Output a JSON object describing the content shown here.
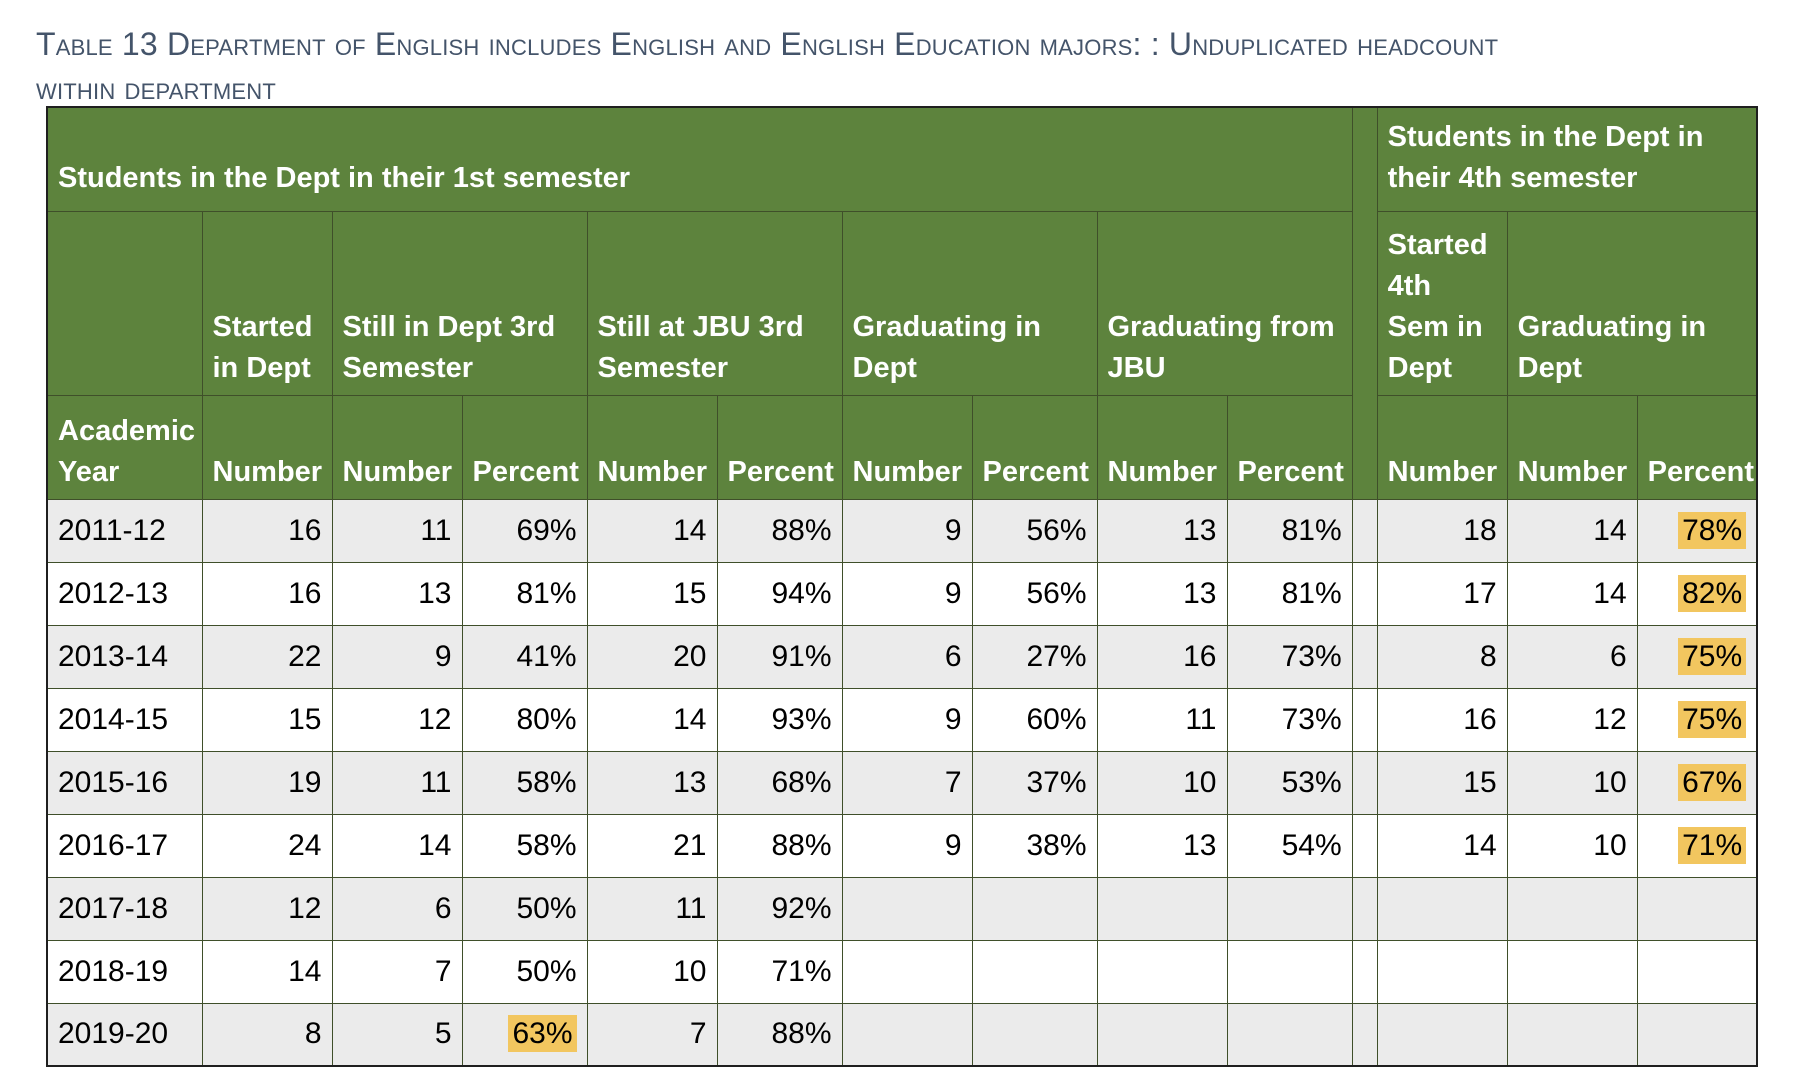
{
  "caption": {
    "line1": "Table 13 Department of English includes English and English Education majors: : Unduplicated headcount",
    "line2": "within department"
  },
  "header": {
    "group_first": "Students in the Dept in their 1st semester",
    "group_fourth": "Students in the Dept in their 4th semester",
    "started_in_dept": "Started in Dept",
    "still_in_dept_3rd": "Still in Dept 3rd Semester",
    "still_at_jbu_3rd": "Still at JBU 3rd Semester",
    "graduating_in_dept": "Graduating in Dept",
    "graduating_from_jbu": "Graduating from JBU",
    "started_4th_sem": "Started 4th Sem in Dept",
    "graduating_in_dept_4th": "Graduating in Dept",
    "academic_year": "Academic Year",
    "number": "Number",
    "percent": "Percent"
  },
  "highlight_color": "#f2c65f",
  "header_color": "#5d833d",
  "rows": [
    {
      "year": "2011-12",
      "started": "16",
      "dept3_n": "11",
      "dept3_p": "69%",
      "jbu3_n": "14",
      "jbu3_p": "88%",
      "grad_dept_n": "9",
      "grad_dept_p": "56%",
      "grad_jbu_n": "13",
      "grad_jbu_p": "81%",
      "s4_started": "18",
      "s4_grad_n": "14",
      "s4_grad_p": "78%"
    },
    {
      "year": "2012-13",
      "started": "16",
      "dept3_n": "13",
      "dept3_p": "81%",
      "jbu3_n": "15",
      "jbu3_p": "94%",
      "grad_dept_n": "9",
      "grad_dept_p": "56%",
      "grad_jbu_n": "13",
      "grad_jbu_p": "81%",
      "s4_started": "17",
      "s4_grad_n": "14",
      "s4_grad_p": "82%"
    },
    {
      "year": "2013-14",
      "started": "22",
      "dept3_n": "9",
      "dept3_p": "41%",
      "jbu3_n": "20",
      "jbu3_p": "91%",
      "grad_dept_n": "6",
      "grad_dept_p": "27%",
      "grad_jbu_n": "16",
      "grad_jbu_p": "73%",
      "s4_started": "8",
      "s4_grad_n": "6",
      "s4_grad_p": "75%"
    },
    {
      "year": "2014-15",
      "started": "15",
      "dept3_n": "12",
      "dept3_p": "80%",
      "jbu3_n": "14",
      "jbu3_p": "93%",
      "grad_dept_n": "9",
      "grad_dept_p": "60%",
      "grad_jbu_n": "11",
      "grad_jbu_p": "73%",
      "s4_started": "16",
      "s4_grad_n": "12",
      "s4_grad_p": "75%"
    },
    {
      "year": "2015-16",
      "started": "19",
      "dept3_n": "11",
      "dept3_p": "58%",
      "jbu3_n": "13",
      "jbu3_p": "68%",
      "grad_dept_n": "7",
      "grad_dept_p": "37%",
      "grad_jbu_n": "10",
      "grad_jbu_p": "53%",
      "s4_started": "15",
      "s4_grad_n": "10",
      "s4_grad_p": "67%"
    },
    {
      "year": "2016-17",
      "started": "24",
      "dept3_n": "14",
      "dept3_p": "58%",
      "jbu3_n": "21",
      "jbu3_p": "88%",
      "grad_dept_n": "9",
      "grad_dept_p": "38%",
      "grad_jbu_n": "13",
      "grad_jbu_p": "54%",
      "s4_started": "14",
      "s4_grad_n": "10",
      "s4_grad_p": "71%"
    },
    {
      "year": "2017-18",
      "started": "12",
      "dept3_n": "6",
      "dept3_p": "50%",
      "jbu3_n": "11",
      "jbu3_p": "92%",
      "grad_dept_n": "",
      "grad_dept_p": "",
      "grad_jbu_n": "",
      "grad_jbu_p": "",
      "s4_started": "",
      "s4_grad_n": "",
      "s4_grad_p": ""
    },
    {
      "year": "2018-19",
      "started": "14",
      "dept3_n": "7",
      "dept3_p": "50%",
      "jbu3_n": "10",
      "jbu3_p": "71%",
      "grad_dept_n": "",
      "grad_dept_p": "",
      "grad_jbu_n": "",
      "grad_jbu_p": "",
      "s4_started": "",
      "s4_grad_n": "",
      "s4_grad_p": ""
    },
    {
      "year": "2019-20",
      "started": "8",
      "dept3_n": "5",
      "dept3_p": "63%",
      "jbu3_n": "7",
      "jbu3_p": "88%",
      "grad_dept_n": "",
      "grad_dept_p": "",
      "grad_jbu_n": "",
      "grad_jbu_p": "",
      "s4_started": "",
      "s4_grad_n": "",
      "s4_grad_p": ""
    }
  ],
  "highlighted_cells": [
    {
      "row": 0,
      "col": "s4_grad_p"
    },
    {
      "row": 1,
      "col": "s4_grad_p"
    },
    {
      "row": 2,
      "col": "s4_grad_p"
    },
    {
      "row": 3,
      "col": "s4_grad_p"
    },
    {
      "row": 4,
      "col": "s4_grad_p"
    },
    {
      "row": 5,
      "col": "s4_grad_p"
    },
    {
      "row": 8,
      "col": "dept3_p"
    }
  ]
}
